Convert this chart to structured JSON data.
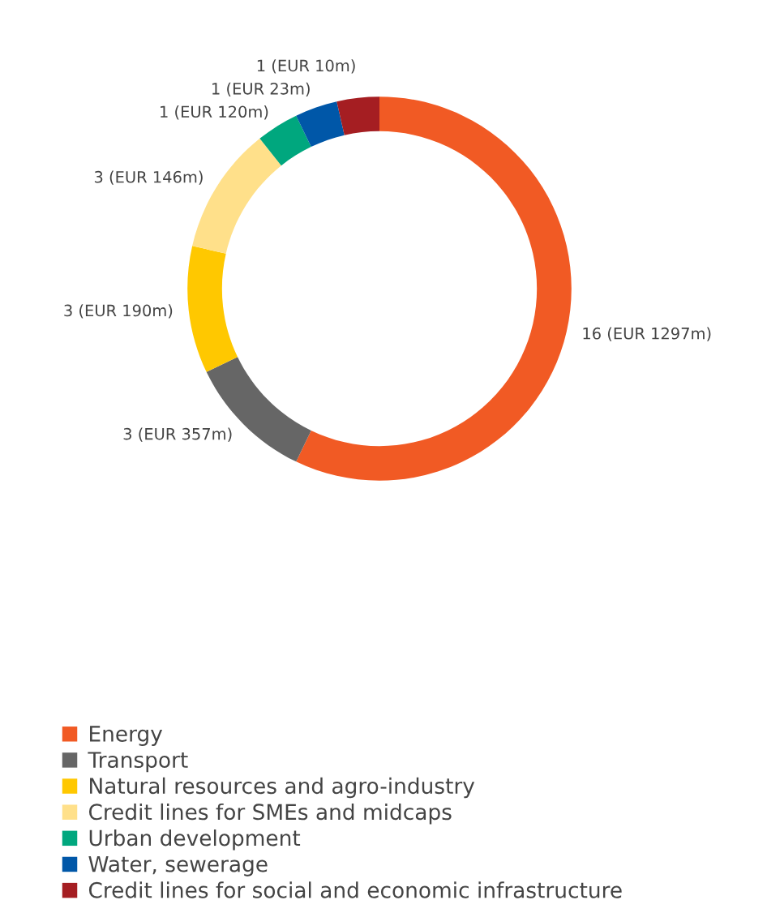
{
  "chart_data": {
    "type": "donut",
    "categories": [
      "Energy",
      "Transport",
      "Natural resources and agro-industry",
      "Credit lines for SMEs and midcaps",
      "Urban development",
      "Water, sewerage",
      "Credit lines for social and economic infrastructure"
    ],
    "values": [
      16,
      3,
      3,
      3,
      1,
      1,
      1
    ],
    "colors": [
      "#f15a24",
      "#666666",
      "#ffc800",
      "#ffe08a",
      "#00a77e",
      "#0057a8",
      "#a51e22"
    ],
    "value_labels": [
      "16 (EUR 1297m)",
      "3 (EUR 357m)",
      "3 (EUR 190m)",
      "3 (EUR 146m)",
      "1 (EUR 120m)",
      "1 (EUR 23m)",
      "1 (EUR 10m)"
    ],
    "legend": "bottom"
  }
}
